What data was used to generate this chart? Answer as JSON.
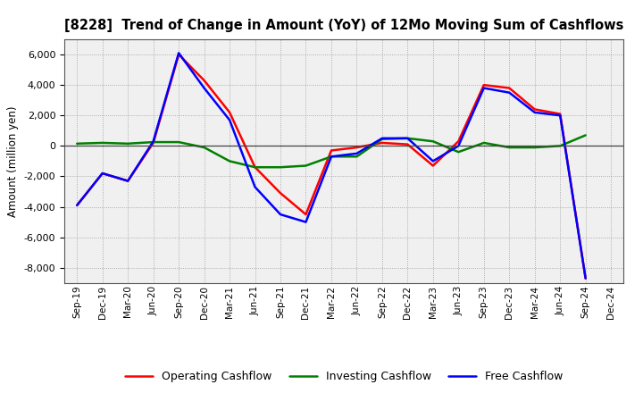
{
  "title": "[8228]  Trend of Change in Amount (YoY) of 12Mo Moving Sum of Cashflows",
  "ylabel": "Amount (million yen)",
  "x_labels": [
    "Sep-19",
    "Dec-19",
    "Mar-20",
    "Jun-20",
    "Sep-20",
    "Dec-20",
    "Mar-21",
    "Jun-21",
    "Sep-21",
    "Dec-21",
    "Mar-22",
    "Jun-22",
    "Sep-22",
    "Dec-22",
    "Mar-23",
    "Jun-23",
    "Sep-23",
    "Dec-23",
    "Mar-24",
    "Jun-24",
    "Sep-24",
    "Dec-24"
  ],
  "operating": [
    -3900,
    -1800,
    -2300,
    200,
    6000,
    4300,
    2200,
    -1400,
    -3100,
    -4500,
    -300,
    -100,
    200,
    100,
    -1300,
    300,
    4000,
    3800,
    2400,
    2100,
    -8700,
    null
  ],
  "investing": [
    150,
    200,
    150,
    250,
    250,
    -100,
    -1000,
    -1400,
    -1400,
    -1300,
    -700,
    -700,
    450,
    500,
    300,
    -400,
    200,
    -100,
    -100,
    0,
    700,
    null
  ],
  "free": [
    -3900,
    -1800,
    -2300,
    300,
    6100,
    3800,
    1700,
    -2700,
    -4500,
    -5000,
    -700,
    -500,
    500,
    500,
    -1000,
    0,
    3800,
    3500,
    2200,
    2000,
    -8700,
    null
  ],
  "operating_color": "#ff0000",
  "investing_color": "#008000",
  "free_color": "#0000ff",
  "bg_color": "#ffffff",
  "plot_bg_color": "#f0f0f0",
  "grid_color": "#aaaaaa",
  "ylim": [
    -9000,
    7000
  ],
  "yticks": [
    -8000,
    -6000,
    -4000,
    -2000,
    0,
    2000,
    4000,
    6000
  ],
  "linewidth": 1.8,
  "legend_labels": [
    "Operating Cashflow",
    "Investing Cashflow",
    "Free Cashflow"
  ]
}
